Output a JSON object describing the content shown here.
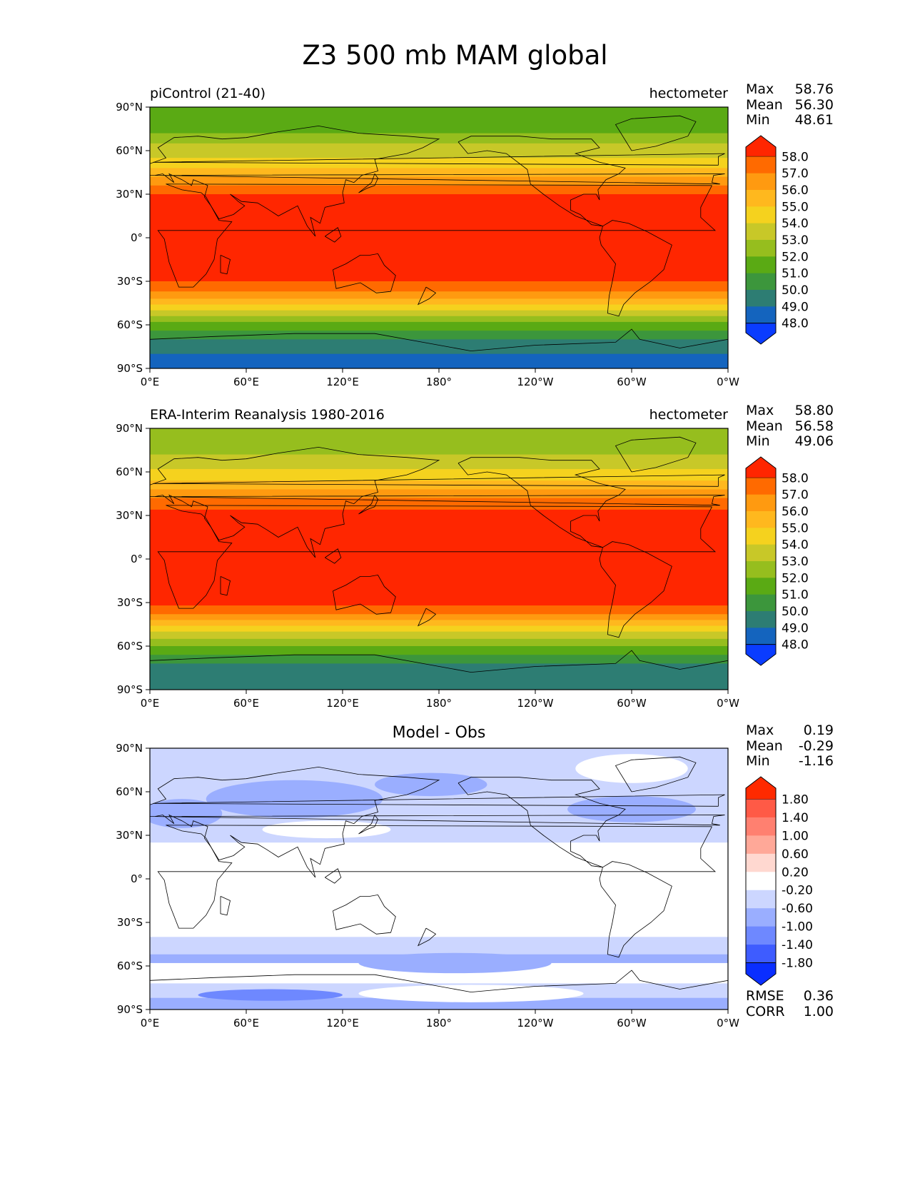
{
  "figure_title": "Z3 500 mb MAM global",
  "axis_ticks": {
    "x": [
      "0°E",
      "60°E",
      "120°E",
      "180°",
      "120°W",
      "60°W",
      "0°W"
    ],
    "y": [
      "90°N",
      "60°N",
      "30°N",
      "0°",
      "30°S",
      "60°S",
      "90°S"
    ]
  },
  "panels": [
    {
      "left_title": "piControl (21-40)",
      "center_title": "",
      "right_title": "hectometer",
      "stats": [
        {
          "name": "Max",
          "value": "58.76"
        },
        {
          "name": "Mean",
          "value": "56.30"
        },
        {
          "name": "Min",
          "value": "48.61"
        }
      ],
      "colorbar_levels": [
        "58.0",
        "57.0",
        "56.0",
        "55.0",
        "54.0",
        "53.0",
        "52.0",
        "51.0",
        "50.0",
        "49.0",
        "48.0"
      ],
      "colorbar_colors": [
        "#ff2600",
        "#ff6a00",
        "#ff9a10",
        "#ffb81e",
        "#f5d21e",
        "#c8c828",
        "#96be1e",
        "#5aaa14",
        "#3c963c",
        "#2d7d73",
        "#1464be",
        "#0a3cff"
      ],
      "extra_stats": []
    },
    {
      "left_title": "ERA-Interim Reanalysis 1980-2016",
      "center_title": "",
      "right_title": "hectometer",
      "stats": [
        {
          "name": "Max",
          "value": "58.80"
        },
        {
          "name": "Mean",
          "value": "56.58"
        },
        {
          "name": "Min",
          "value": "49.06"
        }
      ],
      "colorbar_levels": [
        "58.0",
        "57.0",
        "56.0",
        "55.0",
        "54.0",
        "53.0",
        "52.0",
        "51.0",
        "50.0",
        "49.0",
        "48.0"
      ],
      "colorbar_colors": [
        "#ff2600",
        "#ff6a00",
        "#ff9a10",
        "#ffb81e",
        "#f5d21e",
        "#c8c828",
        "#96be1e",
        "#5aaa14",
        "#3c963c",
        "#2d7d73",
        "#1464be",
        "#0a3cff"
      ],
      "extra_stats": []
    },
    {
      "left_title": "",
      "center_title": "Model - Obs",
      "right_title": "",
      "stats": [
        {
          "name": "Max",
          "value": "0.19"
        },
        {
          "name": "Mean",
          "value": "-0.29"
        },
        {
          "name": "Min",
          "value": "-1.16"
        }
      ],
      "colorbar_levels": [
        "1.80",
        "1.40",
        "1.00",
        "0.60",
        "0.20",
        "-0.20",
        "-0.60",
        "-1.00",
        "-1.40",
        "-1.80"
      ],
      "colorbar_colors": [
        "#ff2a00",
        "#ff5a46",
        "#ff8070",
        "#ffa898",
        "#ffd8d0",
        "#ffffff",
        "#ccd6ff",
        "#9aaeff",
        "#6e88ff",
        "#3e5cff",
        "#0a2eff"
      ],
      "extra_stats": [
        {
          "name": "RMSE",
          "value": "0.36"
        },
        {
          "name": "CORR",
          "value": "1.00"
        }
      ]
    }
  ]
}
